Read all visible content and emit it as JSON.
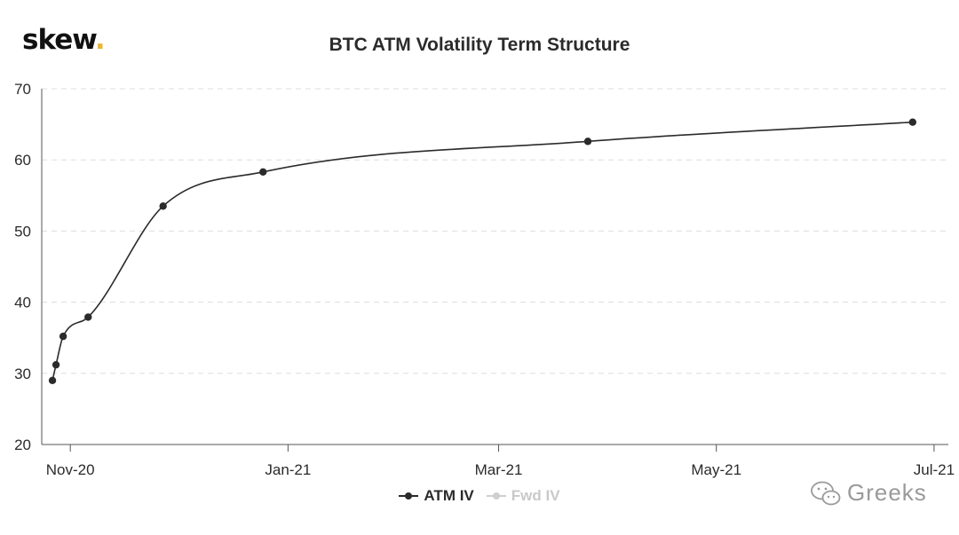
{
  "brand": {
    "logo_text": "skew",
    "logo_dot": "."
  },
  "watermark": {
    "text": "Greeks",
    "icon": "wechat-icon"
  },
  "legend": {
    "items": [
      {
        "label": "ATM IV",
        "active": true
      },
      {
        "label": "Fwd IV",
        "active": false
      }
    ]
  },
  "colors": {
    "series": "#2b2b2b",
    "series_inactive": "#cfcfcf",
    "grid": "#dddddd",
    "axis": "#555555",
    "logo_dot": "#e8b53a"
  },
  "chart_data": {
    "type": "line",
    "title": "BTC ATM Volatility Term Structure",
    "xlabel": "",
    "ylabel": "",
    "x_axis_type": "date",
    "xlim": [
      "2020-10-24",
      "2021-07-05"
    ],
    "ylim": [
      20,
      70
    ],
    "y_ticks": [
      20,
      30,
      40,
      50,
      60,
      70
    ],
    "x_ticks": [
      {
        "date": "2020-11-01",
        "label": "Nov-20"
      },
      {
        "date": "2021-01-01",
        "label": "Jan-21"
      },
      {
        "date": "2021-03-01",
        "label": "Mar-21"
      },
      {
        "date": "2021-05-01",
        "label": "May-21"
      },
      {
        "date": "2021-07-01",
        "label": "Jul-21"
      }
    ],
    "grid": true,
    "legend_position": "bottom-center",
    "series": [
      {
        "name": "ATM IV",
        "x": [
          "2020-10-27",
          "2020-10-28",
          "2020-10-30",
          "2020-11-06",
          "2020-11-27",
          "2020-12-25",
          "2021-03-26",
          "2021-06-25"
        ],
        "values": [
          29.0,
          31.2,
          35.2,
          37.9,
          53.5,
          58.3,
          62.6,
          65.3
        ]
      },
      {
        "name": "Fwd IV",
        "x": [],
        "values": [],
        "visible": false
      }
    ]
  }
}
